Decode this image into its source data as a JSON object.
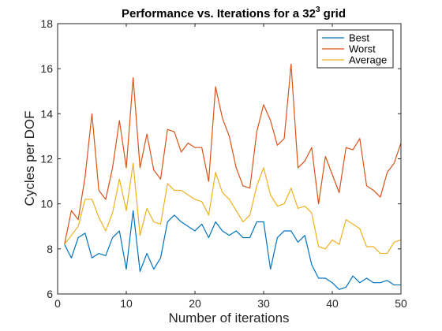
{
  "chart_data": {
    "type": "line",
    "title": "Performance vs. Iterations for a 32",
    "title_superscript": "3",
    "title_suffix": " grid",
    "xlabel": "Number of iterations",
    "ylabel": "Cycles per DOF",
    "xlim": [
      0,
      50
    ],
    "ylim": [
      6,
      18
    ],
    "xticks": [
      0,
      10,
      20,
      30,
      40,
      50
    ],
    "yticks": [
      6,
      8,
      10,
      12,
      14,
      16,
      18
    ],
    "grid": false,
    "legend_position": "top-right",
    "x": [
      1,
      2,
      3,
      4,
      5,
      6,
      7,
      8,
      9,
      10,
      11,
      12,
      13,
      14,
      15,
      16,
      17,
      18,
      19,
      20,
      21,
      22,
      23,
      24,
      25,
      26,
      27,
      28,
      29,
      30,
      31,
      32,
      33,
      34,
      35,
      36,
      37,
      38,
      39,
      40,
      41,
      42,
      43,
      44,
      45,
      46,
      47,
      48,
      49,
      50
    ],
    "series": [
      {
        "name": "Best",
        "color": "#0072BD",
        "values": [
          8.2,
          7.6,
          8.5,
          8.7,
          7.6,
          7.8,
          7.7,
          8.5,
          8.8,
          7.1,
          9.7,
          7.0,
          7.8,
          7.1,
          7.6,
          9.2,
          9.5,
          9.2,
          9.0,
          8.8,
          9.1,
          8.5,
          9.2,
          8.8,
          8.6,
          8.8,
          8.5,
          8.5,
          9.2,
          9.2,
          7.1,
          8.5,
          8.8,
          8.8,
          8.3,
          8.6,
          7.3,
          6.7,
          6.7,
          6.5,
          6.2,
          6.3,
          6.8,
          6.5,
          6.7,
          6.5,
          6.5,
          6.6,
          6.4,
          6.4
        ]
      },
      {
        "name": "Worst",
        "color": "#D95319",
        "values": [
          8.2,
          9.7,
          9.3,
          11.2,
          14.0,
          10.6,
          10.2,
          11.6,
          13.7,
          11.6,
          15.6,
          11.6,
          13.1,
          11.5,
          11.1,
          13.3,
          13.2,
          12.3,
          12.7,
          12.5,
          12.5,
          11.0,
          15.2,
          13.8,
          13.0,
          11.6,
          10.8,
          10.7,
          13.2,
          14.4,
          13.7,
          12.6,
          12.9,
          16.2,
          11.6,
          11.9,
          12.5,
          10.0,
          12.1,
          11.3,
          10.5,
          12.5,
          12.4,
          12.9,
          10.8,
          10.6,
          10.3,
          11.4,
          11.8,
          12.7
        ]
      },
      {
        "name": "Average",
        "color": "#EDB120",
        "values": [
          8.2,
          8.6,
          9.0,
          10.2,
          10.2,
          9.4,
          8.8,
          9.6,
          11.1,
          9.7,
          11.8,
          8.6,
          9.8,
          9.2,
          9.1,
          10.9,
          10.6,
          10.6,
          10.4,
          10.2,
          10.1,
          9.5,
          11.4,
          10.5,
          10.2,
          9.7,
          9.2,
          9.5,
          10.8,
          11.6,
          10.4,
          9.9,
          10.0,
          10.7,
          9.8,
          9.9,
          9.6,
          8.1,
          8.0,
          8.4,
          8.2,
          9.3,
          9.1,
          8.9,
          8.1,
          8.1,
          7.8,
          7.8,
          8.3,
          8.4
        ]
      }
    ]
  }
}
